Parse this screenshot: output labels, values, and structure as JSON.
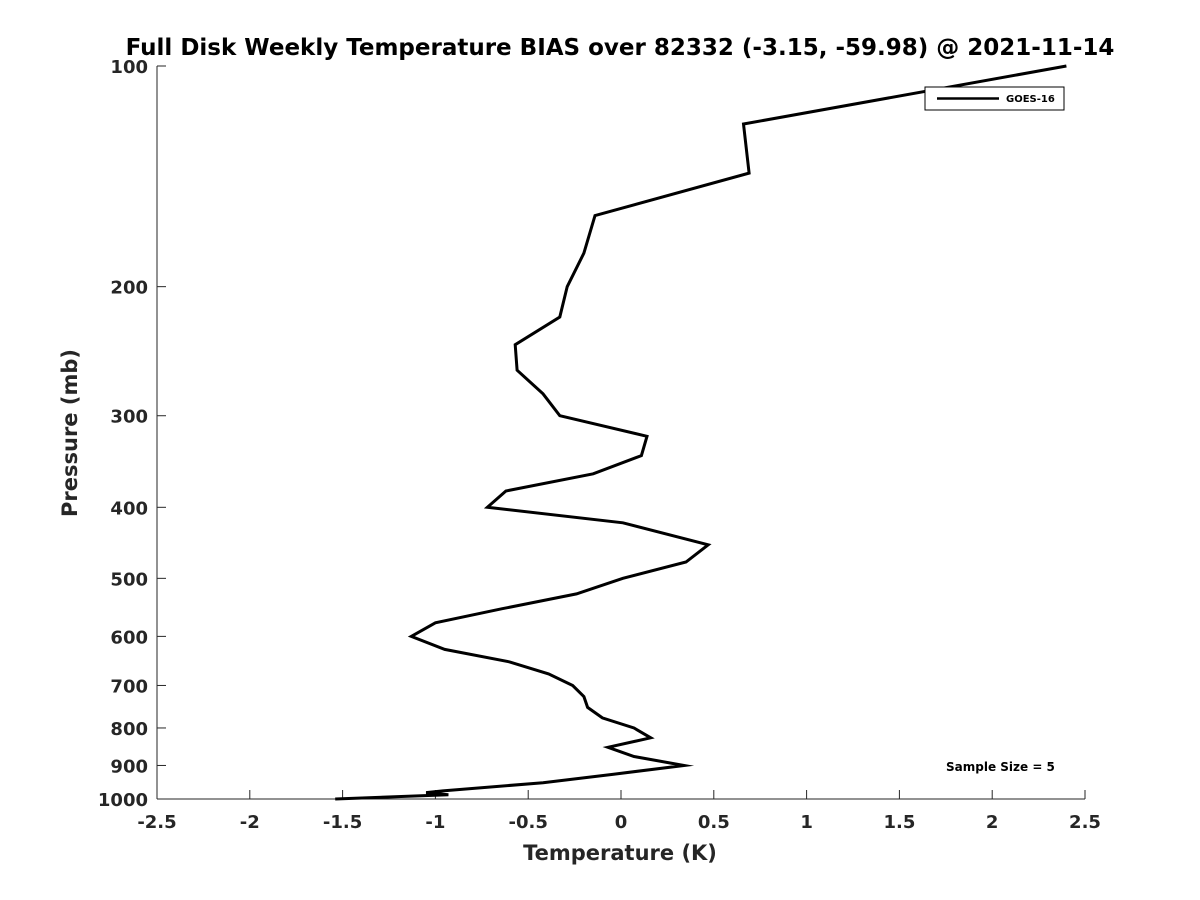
{
  "chart_data": {
    "type": "line",
    "title": "Full Disk Weekly Temperature BIAS over 82332 (-3.15, -59.98) @ 2021-11-14",
    "xlabel": "Temperature (K)",
    "ylabel": "Pressure (mb)",
    "xlim": [
      -2.5,
      2.5
    ],
    "ylim": [
      100,
      1000
    ],
    "y_scale": "log",
    "y_reversed": true,
    "x_ticks": [
      -2.5,
      -2,
      -1.5,
      -1,
      -0.5,
      0,
      0.5,
      1,
      1.5,
      2,
      2.5
    ],
    "x_tick_labels": [
      "-2.5",
      "-2",
      "-1.5",
      "-1",
      "-0.5",
      "0",
      "0.5",
      "1",
      "1.5",
      "2",
      "2.5"
    ],
    "y_ticks": [
      100,
      200,
      300,
      400,
      500,
      600,
      700,
      800,
      900,
      1000
    ],
    "y_tick_labels": [
      "100",
      "200",
      "300",
      "400",
      "500",
      "600",
      "700",
      "800",
      "900",
      "1000"
    ],
    "grid": false,
    "legend": {
      "placement": "top-right",
      "entries": [
        "GOES-16"
      ]
    },
    "annotation": "Sample Size = 5",
    "series": [
      {
        "name": "GOES-16",
        "color": "#000000",
        "points": [
          [
            2.4,
            100
          ],
          [
            0.66,
            120
          ],
          [
            0.69,
            140
          ],
          [
            -0.14,
            160
          ],
          [
            -0.2,
            180
          ],
          [
            -0.29,
            200
          ],
          [
            -0.33,
            220
          ],
          [
            -0.57,
            240
          ],
          [
            -0.56,
            260
          ],
          [
            -0.42,
            280
          ],
          [
            -0.33,
            300
          ],
          [
            0.14,
            320
          ],
          [
            0.11,
            340
          ],
          [
            -0.15,
            360
          ],
          [
            -0.62,
            380
          ],
          [
            -0.72,
            400
          ],
          [
            0.01,
            420
          ],
          [
            0.47,
            450
          ],
          [
            0.35,
            475
          ],
          [
            0.01,
            500
          ],
          [
            -0.24,
            525
          ],
          [
            -0.64,
            550
          ],
          [
            -1.0,
            575
          ],
          [
            -1.13,
            600
          ],
          [
            -0.95,
            625
          ],
          [
            -0.6,
            650
          ],
          [
            -0.39,
            675
          ],
          [
            -0.26,
            700
          ],
          [
            -0.2,
            725
          ],
          [
            -0.18,
            750
          ],
          [
            -0.1,
            775
          ],
          [
            0.07,
            800
          ],
          [
            0.16,
            825
          ],
          [
            -0.07,
            850
          ],
          [
            0.07,
            875
          ],
          [
            0.34,
            900
          ],
          [
            -0.04,
            925
          ],
          [
            -0.42,
            950
          ],
          [
            -0.96,
            975
          ],
          [
            -1.05,
            980
          ],
          [
            -0.93,
            987
          ],
          [
            -1.54,
            1000
          ]
        ]
      }
    ]
  }
}
